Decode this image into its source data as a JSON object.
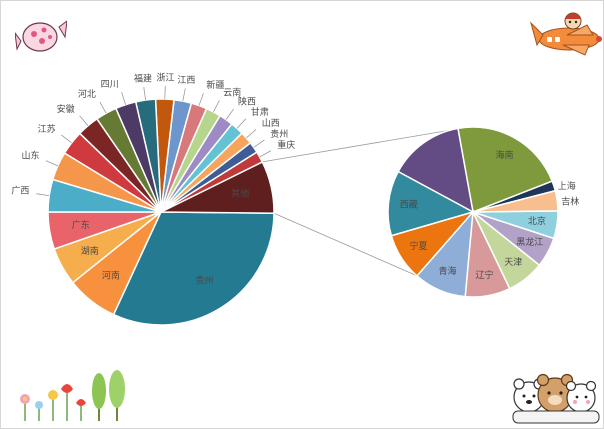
{
  "chart_data": [
    {
      "type": "pie",
      "role": "main-pie",
      "slices": [
        {
          "label": "广东",
          "value": 4.7,
          "color": "#e8646a"
        },
        {
          "label": "湖南",
          "value": 4.8,
          "color": "#f6ae4c"
        },
        {
          "label": "河南",
          "value": 6.5,
          "color": "#f7913d"
        },
        {
          "label": "贵州",
          "value": 28.0,
          "color": "#237a91"
        },
        {
          "label": "其他",
          "value": 6.6,
          "color": "#5f1f1f"
        },
        {
          "label": "重庆",
          "value": 1.4,
          "color": "#c0393b"
        },
        {
          "label": "贵州",
          "value": 1.4,
          "color": "#3e5c96"
        },
        {
          "label": "山西",
          "value": 1.6,
          "color": "#f7a45d"
        },
        {
          "label": "甘肃",
          "value": 1.7,
          "color": "#63c3d4"
        },
        {
          "label": "陕西",
          "value": 1.8,
          "color": "#9c8bc4"
        },
        {
          "label": "云南",
          "value": 1.9,
          "color": "#b6d58d"
        },
        {
          "label": "新疆",
          "value": 2.0,
          "color": "#d9787b"
        },
        {
          "label": "江西",
          "value": 2.2,
          "color": "#6d97cc"
        },
        {
          "label": "浙江",
          "value": 2.3,
          "color": "#c2580e"
        },
        {
          "label": "福建",
          "value": 2.5,
          "color": "#276c7c"
        },
        {
          "label": "四川",
          "value": 2.6,
          "color": "#4d3a65"
        },
        {
          "label": "河北",
          "value": 2.7,
          "color": "#667a34"
        },
        {
          "label": "安徽",
          "value": 2.8,
          "color": "#7b2525"
        },
        {
          "label": "江苏",
          "value": 3.1,
          "color": "#ce3a3d"
        },
        {
          "label": "山东",
          "value": 3.6,
          "color": "#f4974a"
        },
        {
          "label": "广西",
          "value": 4.1,
          "color": "#4badc7"
        }
      ]
    },
    {
      "type": "pie",
      "role": "detail-pie",
      "slices": [
        {
          "label": "上海",
          "value": 2.0,
          "color": "#1f3658"
        },
        {
          "label": "海南",
          "value": 23.0,
          "color": "#7e9a3c"
        },
        {
          "label": "",
          "value": 15.0,
          "color": "#634c84"
        },
        {
          "label": "西藏",
          "value": 13.0,
          "color": "#318a9d"
        },
        {
          "label": "宁夏",
          "value": 9.5,
          "color": "#ec750f"
        },
        {
          "label": "青海",
          "value": 10.5,
          "color": "#8faed7"
        },
        {
          "label": "辽宁",
          "value": 9.0,
          "color": "#d8999a"
        },
        {
          "label": "天津",
          "value": 7.5,
          "color": "#c3d69b"
        },
        {
          "label": "黑龙江",
          "value": 6.0,
          "color": "#b3a2c8"
        },
        {
          "label": "北京",
          "value": 5.5,
          "color": "#8fd0df"
        },
        {
          "label": "吉林",
          "value": 4.0,
          "color": "#f9be8e"
        }
      ]
    }
  ],
  "decor": {
    "candy": "candy-icon",
    "airplane": "cartoon-airplane-icon",
    "flowers": "flowers-icon",
    "bears": "cartoon-bears-icon"
  }
}
